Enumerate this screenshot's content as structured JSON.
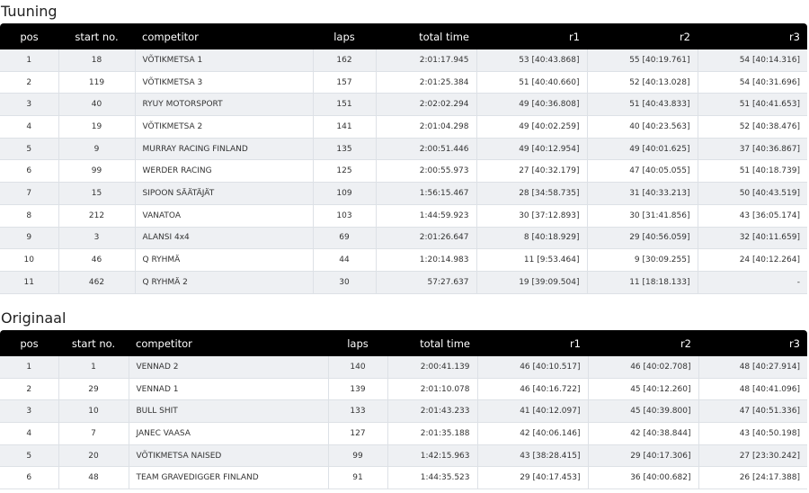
{
  "tuuning": {
    "title": "Tuuning",
    "headers": [
      "pos",
      "start no.",
      "competitor",
      "laps",
      "total time",
      "r1",
      "r2",
      "r3"
    ],
    "rows": [
      [
        "1",
        "18",
        "VÕTIKMETSA 1",
        "162",
        "2:01:17.945",
        "53 [40:43.868]",
        "55 [40:19.761]",
        "54 [40:14.316]"
      ],
      [
        "2",
        "119",
        "VÕTIKMETSA 3",
        "157",
        "2:01:25.384",
        "51 [40:40.660]",
        "52 [40:13.028]",
        "54 [40:31.696]"
      ],
      [
        "3",
        "40",
        "RYUY MOTORSPORT",
        "151",
        "2:02:02.294",
        "49 [40:36.808]",
        "51 [40:43.833]",
        "51 [40:41.653]"
      ],
      [
        "4",
        "19",
        "VÕTIKMETSA 2",
        "141",
        "2:01:04.298",
        "49 [40:02.259]",
        "40 [40:23.563]",
        "52 [40:38.476]"
      ],
      [
        "5",
        "9",
        "MURRAY RACING FINLAND",
        "135",
        "2:00:51.446",
        "49 [40:12.954]",
        "49 [40:01.625]",
        "37 [40:36.867]"
      ],
      [
        "6",
        "99",
        "WERDER RACING",
        "125",
        "2:00:55.973",
        "27 [40:32.179]",
        "47 [40:05.055]",
        "51 [40:18.739]"
      ],
      [
        "7",
        "15",
        "SIPOON SÄÄTÄJÄT",
        "109",
        "1:56:15.467",
        "28 [34:58.735]",
        "31 [40:33.213]",
        "50 [40:43.519]"
      ],
      [
        "8",
        "212",
        "VANATOA",
        "103",
        "1:44:59.923",
        "30 [37:12.893]",
        "30 [31:41.856]",
        "43 [36:05.174]"
      ],
      [
        "9",
        "3",
        "ALANSI 4x4",
        "69",
        "2:01:26.647",
        "8 [40:18.929]",
        "29 [40:56.059]",
        "32 [40:11.659]"
      ],
      [
        "10",
        "46",
        "Q RYHMÄ",
        "44",
        "1:20:14.983",
        "11 [9:53.464]",
        "9 [30:09.255]",
        "24 [40:12.264]"
      ],
      [
        "11",
        "462",
        "Q RYHMÄ 2",
        "30",
        "57:27.637",
        "19 [39:09.504]",
        "11 [18:18.133]",
        "-"
      ]
    ]
  },
  "originaal": {
    "title": "Originaal",
    "headers": [
      "pos",
      "start no.",
      "competitor",
      "laps",
      "total time",
      "r1",
      "r2",
      "r3"
    ],
    "rows": [
      [
        "1",
        "1",
        "VENNAD 2",
        "140",
        "2:00:41.139",
        "46 [40:10.517]",
        "46 [40:02.708]",
        "48 [40:27.914]"
      ],
      [
        "2",
        "29",
        "VENNAD 1",
        "139",
        "2:01:10.078",
        "46 [40:16.722]",
        "45 [40:12.260]",
        "48 [40:41.096]"
      ],
      [
        "3",
        "10",
        "BULL SHIT",
        "133",
        "2:01:43.233",
        "41 [40:12.097]",
        "45 [40:39.800]",
        "47 [40:51.336]"
      ],
      [
        "4",
        "7",
        "JANEC VAASA",
        "127",
        "2:01:35.188",
        "42 [40:06.146]",
        "42 [40:38.844]",
        "43 [40:50.198]"
      ],
      [
        "5",
        "20",
        "VÕTIKMETSA NAISED",
        "99",
        "1:42:15.963",
        "43 [38:28.415]",
        "29 [40:17.306]",
        "27 [23:30.242]"
      ],
      [
        "6",
        "48",
        "TEAM GRAVEDIGGER FINLAND",
        "91",
        "1:44:35.523",
        "29 [40:17.453]",
        "36 [40:00.682]",
        "26 [24:17.388]"
      ]
    ]
  }
}
